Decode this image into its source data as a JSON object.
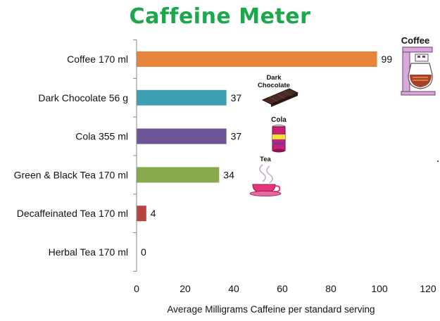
{
  "colors": {
    "title": "#1aa84a",
    "axis": "#888888",
    "bars": [
      "#e8843c",
      "#3e9fb2",
      "#6e5597",
      "#86aa4b",
      "#b84442",
      "#888888"
    ]
  },
  "chart_data": {
    "type": "bar",
    "orientation": "horizontal",
    "title": "Caffeine Meter",
    "categories": [
      "Coffee 170 ml",
      "Dark Chocolate 56 g",
      "Cola 355 ml",
      "Green & Black Tea 170 ml",
      "Decaffeinated Tea 170 ml",
      "Herbal Tea 170 ml"
    ],
    "values": [
      99,
      37,
      37,
      34,
      4,
      0
    ],
    "data_labels": [
      "99",
      "37",
      "37",
      "34",
      "4",
      "0"
    ],
    "xlabel": "Average Milligrams Caffeine per standard serving",
    "ylabel": "",
    "xlim": [
      0,
      120
    ],
    "xticks": [
      0,
      20,
      40,
      60,
      80,
      100,
      120
    ],
    "xtick_labels": [
      "0",
      "20",
      "40",
      "60",
      "80",
      "100",
      "120"
    ],
    "grid": false,
    "legend": "none",
    "illustrations": [
      {
        "label": "Coffee",
        "icon": "coffee-maker-icon"
      },
      {
        "label_lines": [
          "Dark",
          "Chocolate"
        ],
        "icon": "chocolate-bar-icon"
      },
      {
        "label": "Cola",
        "icon": "cola-can-icon"
      },
      {
        "label": "Tea",
        "icon": "tea-cup-icon"
      }
    ]
  }
}
